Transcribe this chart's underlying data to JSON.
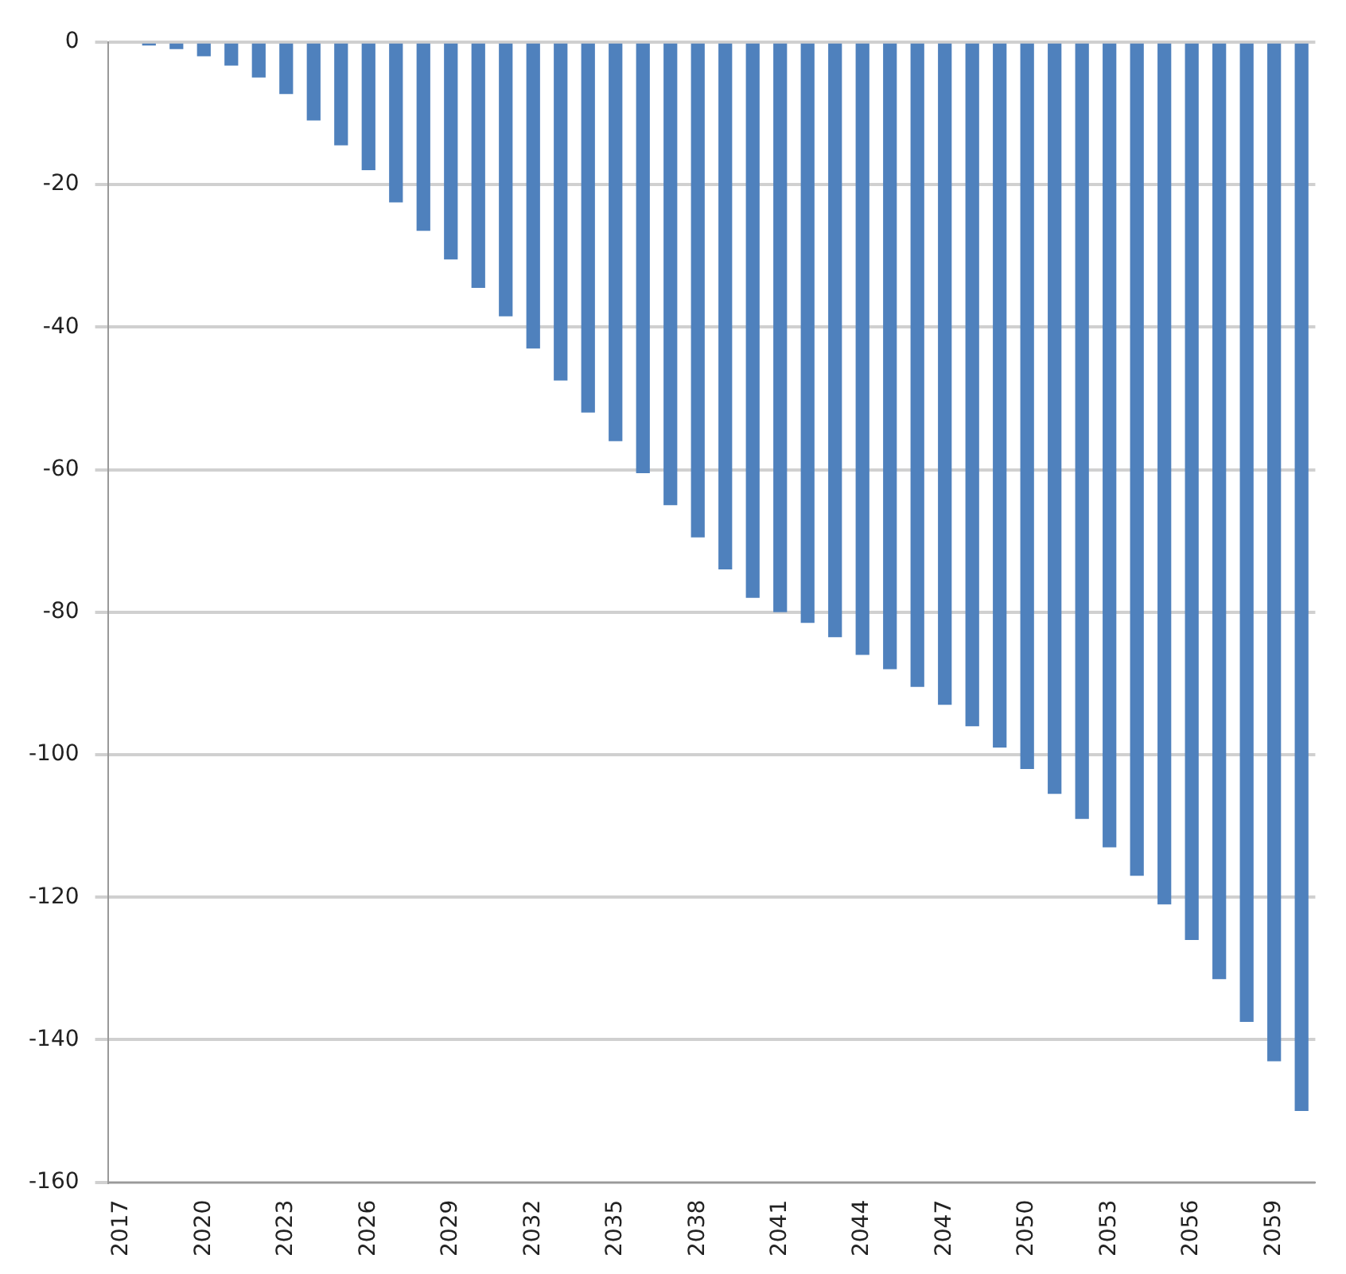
{
  "chart_data": {
    "type": "bar",
    "categories": [
      "2017",
      null,
      null,
      "2020",
      null,
      null,
      "2023",
      null,
      null,
      "2026",
      null,
      null,
      "2029",
      null,
      null,
      "2032",
      null,
      null,
      "2035",
      null,
      null,
      "2038",
      null,
      null,
      "2041",
      null,
      null,
      "2044",
      null,
      null,
      "2047",
      null,
      null,
      "2050",
      null,
      null,
      "2053",
      null,
      null,
      "2056",
      null,
      null,
      "2059",
      null
    ],
    "values": [
      0,
      -0.5,
      -1,
      -2,
      -3.3,
      -5,
      -7.3,
      -11,
      -14.5,
      -18,
      -22.5,
      -26.5,
      -30.5,
      -34.5,
      -38.5,
      -43,
      -47.5,
      -52,
      -56,
      -60.5,
      -65,
      -69.5,
      -74,
      -78,
      -80,
      -81.5,
      -83.5,
      -86,
      -88,
      -90.5,
      -93,
      -96,
      -99,
      -102,
      -105.5,
      -109,
      -113,
      -117,
      -121,
      -126,
      -131.5,
      -137.5,
      -143,
      -150
    ],
    "color": "#4f81bd",
    "ylim": [
      -160,
      0
    ],
    "yticks": [
      -160,
      -140,
      -120,
      -100,
      -80,
      -60,
      -40,
      -20,
      0
    ],
    "grid": "y",
    "legend": false
  }
}
